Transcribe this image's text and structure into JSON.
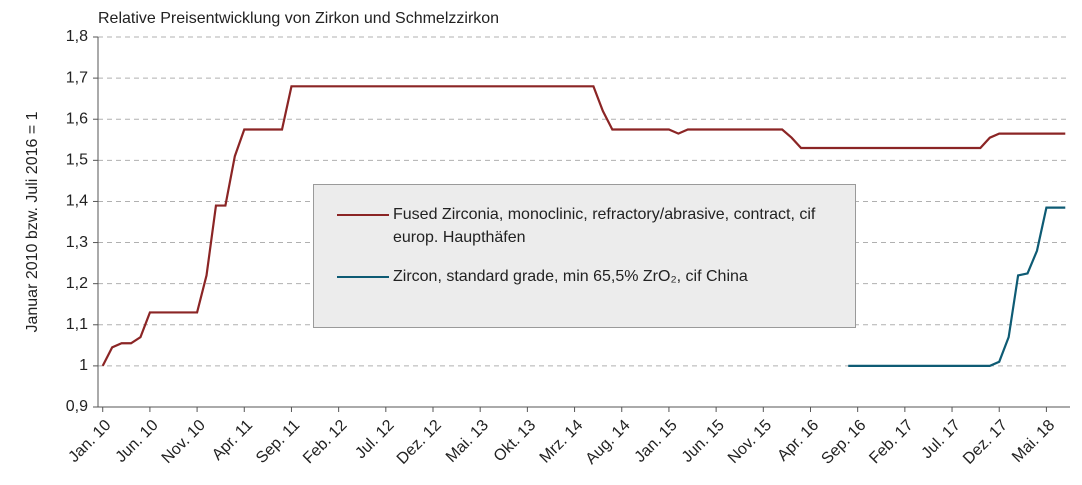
{
  "chart_data": {
    "type": "line",
    "title": "Relative Preisentwicklung von Zirkon und Schmelzzirkon",
    "y_label": "Januar 2010 bzw. Juli 2016 = 1",
    "categories": [
      "Jan. 10",
      null,
      null,
      null,
      null,
      "Jun. 10",
      null,
      null,
      null,
      null,
      "Nov. 10",
      null,
      null,
      null,
      null,
      "Apr. 11",
      null,
      null,
      null,
      null,
      "Sep. 11",
      null,
      null,
      null,
      null,
      "Feb. 12",
      null,
      null,
      null,
      null,
      "Jul. 12",
      null,
      null,
      null,
      null,
      "Dez. 12",
      null,
      null,
      null,
      null,
      "Mai. 13",
      null,
      null,
      null,
      null,
      "Okt. 13",
      null,
      null,
      null,
      null,
      "Mrz. 14",
      null,
      null,
      null,
      null,
      "Aug. 14",
      null,
      null,
      null,
      null,
      "Jan. 15",
      null,
      null,
      null,
      null,
      "Jun. 15",
      null,
      null,
      null,
      null,
      "Nov. 15",
      null,
      null,
      null,
      null,
      "Apr. 16",
      null,
      null,
      null,
      null,
      "Sep. 16",
      null,
      null,
      null,
      null,
      "Feb. 17",
      null,
      null,
      null,
      null,
      "Jul. 17",
      null,
      null,
      null,
      null,
      "Dez. 17",
      null,
      null,
      null,
      null,
      "Mai. 18",
      null,
      null
    ],
    "series": [
      {
        "name": "Fused Zirconia, monoclinic, refractory/abrasive, contract, cif europ. Haupthäfen",
        "color": "#8b2525",
        "values": [
          1,
          1.045,
          1.055,
          1.055,
          1.07,
          1.13,
          1.13,
          1.13,
          1.13,
          1.13,
          1.13,
          1.22,
          1.39,
          1.39,
          1.51,
          1.575,
          1.575,
          1.575,
          1.575,
          1.575,
          1.68,
          1.68,
          1.68,
          1.68,
          1.68,
          1.68,
          1.68,
          1.68,
          1.68,
          1.68,
          1.68,
          1.68,
          1.68,
          1.68,
          1.68,
          1.68,
          1.68,
          1.68,
          1.68,
          1.68,
          1.68,
          1.68,
          1.68,
          1.68,
          1.68,
          1.68,
          1.68,
          1.68,
          1.68,
          1.68,
          1.68,
          1.68,
          1.68,
          1.62,
          1.575,
          1.575,
          1.575,
          1.575,
          1.575,
          1.575,
          1.575,
          1.565,
          1.575,
          1.575,
          1.575,
          1.575,
          1.575,
          1.575,
          1.575,
          1.575,
          1.575,
          1.575,
          1.575,
          1.555,
          1.53,
          1.53,
          1.53,
          1.53,
          1.53,
          1.53,
          1.53,
          1.53,
          1.53,
          1.53,
          1.53,
          1.53,
          1.53,
          1.53,
          1.53,
          1.53,
          1.53,
          1.53,
          1.53,
          1.53,
          1.555,
          1.565,
          1.565,
          1.565,
          1.565,
          1.565,
          1.565,
          1.565,
          1.565
        ]
      },
      {
        "name": "Zircon, standard grade, min 65,5% ZrO₂, cif China",
        "color": "#0e5b74",
        "values": [
          null,
          null,
          null,
          null,
          null,
          null,
          null,
          null,
          null,
          null,
          null,
          null,
          null,
          null,
          null,
          null,
          null,
          null,
          null,
          null,
          null,
          null,
          null,
          null,
          null,
          null,
          null,
          null,
          null,
          null,
          null,
          null,
          null,
          null,
          null,
          null,
          null,
          null,
          null,
          null,
          null,
          null,
          null,
          null,
          null,
          null,
          null,
          null,
          null,
          null,
          null,
          null,
          null,
          null,
          null,
          null,
          null,
          null,
          null,
          null,
          null,
          null,
          null,
          null,
          null,
          null,
          null,
          null,
          null,
          null,
          null,
          null,
          null,
          null,
          null,
          null,
          null,
          null,
          null,
          1,
          1,
          1,
          1,
          1,
          1,
          1,
          1,
          1,
          1,
          1,
          1,
          1,
          1,
          1,
          1,
          1.01,
          1.07,
          1.22,
          1.225,
          1.28,
          1.385,
          1.385,
          1.385
        ]
      }
    ],
    "ylim": [
      0.9,
      1.8
    ],
    "yticks": [
      {
        "value": 0.9,
        "label": "0,9"
      },
      1,
      {
        "value": 1.1,
        "label": "1,1"
      },
      {
        "value": 1.2,
        "label": "1,2"
      },
      {
        "value": 1.3,
        "label": "1,3"
      },
      {
        "value": 1.4,
        "label": "1,4"
      },
      {
        "value": 1.5,
        "label": "1,5"
      },
      {
        "value": 1.6,
        "label": "1,6"
      },
      {
        "value": 1.7,
        "label": "1,7"
      },
      {
        "value": 1.8,
        "label": "1,8"
      }
    ],
    "grid": true
  }
}
